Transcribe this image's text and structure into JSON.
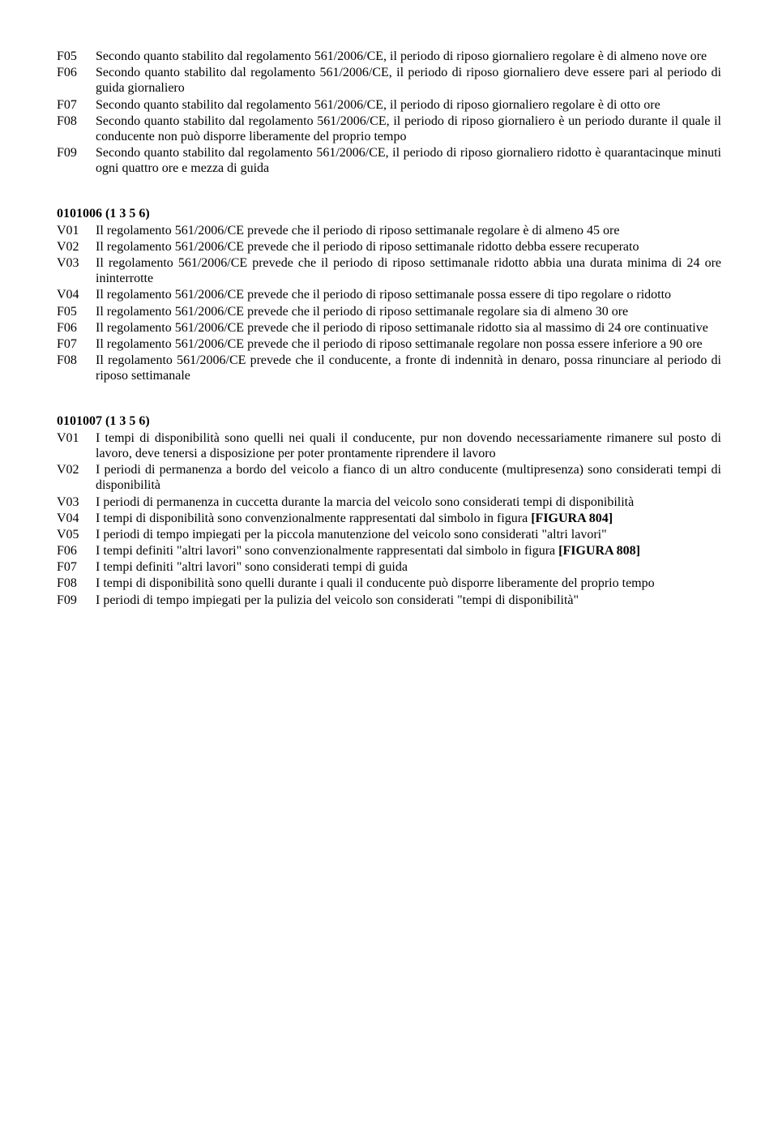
{
  "blocks": [
    {
      "heading": null,
      "items": [
        {
          "code": "F05",
          "text": "Secondo quanto stabilito dal regolamento 561/2006/CE, il periodo di riposo giornaliero regolare è di almeno nove ore"
        },
        {
          "code": "F06",
          "text": "Secondo quanto stabilito dal regolamento 561/2006/CE, il periodo di riposo giornaliero deve essere pari al periodo di guida giornaliero"
        },
        {
          "code": "F07",
          "text": "Secondo quanto stabilito dal regolamento 561/2006/CE, il periodo di riposo giornaliero regolare è di otto ore"
        },
        {
          "code": "F08",
          "text": "Secondo quanto stabilito dal regolamento 561/2006/CE, il periodo di riposo giornaliero è un periodo durante il quale il conducente non può disporre liberamente del proprio tempo"
        },
        {
          "code": "F09",
          "text": "Secondo quanto stabilito dal regolamento 561/2006/CE, il periodo di riposo giornaliero ridotto è quarantacinque minuti ogni quattro ore e mezza di guida"
        }
      ]
    },
    {
      "heading": "0101006 (1 3 5 6)",
      "items": [
        {
          "code": "V01",
          "text": "Il regolamento 561/2006/CE prevede che il periodo di riposo settimanale regolare è di almeno 45 ore"
        },
        {
          "code": "V02",
          "text": "Il regolamento 561/2006/CE prevede che il periodo di riposo settimanale ridotto debba essere recuperato"
        },
        {
          "code": "V03",
          "text": "Il regolamento 561/2006/CE prevede che il periodo di riposo settimanale ridotto abbia una durata minima di 24 ore ininterrotte"
        },
        {
          "code": "V04",
          "text": "Il regolamento 561/2006/CE prevede che il periodo di riposo settimanale possa essere di tipo regolare o ridotto"
        },
        {
          "code": "F05",
          "text": "Il regolamento 561/2006/CE prevede che il periodo di riposo settimanale regolare sia di almeno 30 ore"
        },
        {
          "code": "F06",
          "text": "Il regolamento 561/2006/CE prevede che il periodo di riposo settimanale ridotto sia al massimo di 24 ore continuative"
        },
        {
          "code": "F07",
          "text": "Il regolamento 561/2006/CE prevede che il periodo di riposo settimanale regolare non possa essere inferiore a 90 ore"
        },
        {
          "code": "F08",
          "text": "Il regolamento 561/2006/CE prevede che il conducente, a fronte di indennità in denaro, possa rinunciare al periodo di riposo settimanale"
        }
      ]
    },
    {
      "heading": "0101007 (1 3 5 6)",
      "items": [
        {
          "code": "V01",
          "text": "I tempi di disponibilità sono quelli nei quali il conducente, pur non dovendo necessariamente rimanere sul posto di lavoro, deve tenersi a disposizione per poter prontamente riprendere il lavoro"
        },
        {
          "code": "V02",
          "text": "I periodi di permanenza a bordo del veicolo a fianco di un altro conducente (multipresenza) sono considerati tempi di disponibilità"
        },
        {
          "code": "V03",
          "text": "I periodi di permanenza in cuccetta durante la marcia del veicolo sono considerati tempi di disponibilità"
        },
        {
          "code": "V04",
          "text": "I tempi di disponibilità sono convenzionalmente rappresentati dal simbolo in figura <b>[FIGURA 804]</b>"
        },
        {
          "code": "V05",
          "text": "I periodi di tempo impiegati per la piccola manutenzione del veicolo sono considerati \"altri lavori\""
        },
        {
          "code": "F06",
          "text": "I tempi definiti \"altri lavori\" sono convenzionalmente rappresentati dal simbolo in figura <b>[FIGURA 808]</b>"
        },
        {
          "code": "F07",
          "text": "I tempi definiti \"altri lavori\" sono considerati tempi di guida"
        },
        {
          "code": "F08",
          "text": "I tempi di disponibilità sono quelli durante i quali il conducente può disporre liberamente del proprio tempo"
        },
        {
          "code": "F09",
          "text": "I periodi di tempo impiegati per la pulizia del veicolo son considerati \"tempi di disponibilità\""
        }
      ]
    }
  ]
}
